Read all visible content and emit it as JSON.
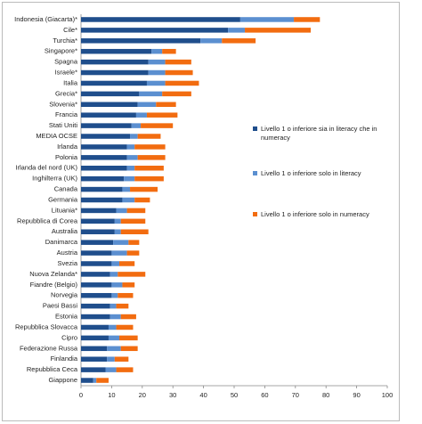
{
  "chart_data": {
    "type": "bar",
    "orientation": "horizontal",
    "stacked": true,
    "categories": [
      "Indonesia (Giacarta)*",
      "Cile*",
      "Turchia*",
      "Singapore*",
      "Spagna",
      "Israele*",
      "Italia",
      "Grecia*",
      "Slovenia*",
      "Francia",
      "Stati Uniti",
      "MEDIA OCSE",
      "Irlanda",
      "Polonia",
      "Irlanda del nord (UK)",
      "Inghilterra (UK)",
      "Canada",
      "Germania",
      "Lituania*",
      "Repubblica di Corea",
      "Australia",
      "Danimarca",
      "Austria",
      "Svezia",
      "Nuova Zelanda*",
      "Fiandre (Belgio)",
      "Norvegia",
      "Paesi Bassi",
      "Estonia",
      "Repubblica Slovacca",
      "Cipro",
      "Federazione Russa",
      "Finlandia",
      "Repubblica Ceca",
      "Giappone"
    ],
    "series": [
      {
        "name": "Livello 1 o inferiore sia in literacy che in numeracy",
        "color": "#1f4e8c",
        "values": [
          52,
          48,
          39,
          23,
          22,
          22,
          21.5,
          19,
          18.5,
          18,
          16.5,
          16,
          15,
          15,
          15,
          14,
          13.5,
          13.5,
          11.5,
          11,
          11,
          10.5,
          10,
          10,
          9.5,
          10,
          10,
          9.5,
          9.5,
          9,
          9,
          8.5,
          8.5,
          8,
          4
        ]
      },
      {
        "name": "Livello 1 o inferiore solo in literacy",
        "color": "#5b8fd0",
        "values": [
          17.5,
          5.5,
          7,
          3.5,
          5.5,
          5.5,
          6,
          7.5,
          6,
          3.5,
          3,
          2.5,
          2.5,
          3.5,
          2.5,
          3.5,
          2.5,
          4,
          3.5,
          2,
          2,
          5,
          5,
          2.5,
          2.5,
          3.5,
          2,
          2,
          3.5,
          2.5,
          3.5,
          4.5,
          2.5,
          3.5,
          1
        ]
      },
      {
        "name": "Livello 1 o inferiore solo in numeracy",
        "color": "#f26c10",
        "values": [
          8.5,
          21.5,
          11,
          4.5,
          8.5,
          9,
          11,
          9.5,
          6.5,
          10,
          10.5,
          7.5,
          10,
          9,
          9.5,
          9.5,
          9,
          5,
          6,
          8,
          9,
          3.5,
          4,
          5,
          9,
          4,
          5,
          4,
          5,
          5.5,
          6,
          5.5,
          4.5,
          5.5,
          4
        ]
      }
    ],
    "xlim": [
      0,
      100
    ],
    "xticks": [
      0,
      10,
      20,
      30,
      40,
      50,
      60,
      70,
      80,
      90,
      100
    ]
  }
}
